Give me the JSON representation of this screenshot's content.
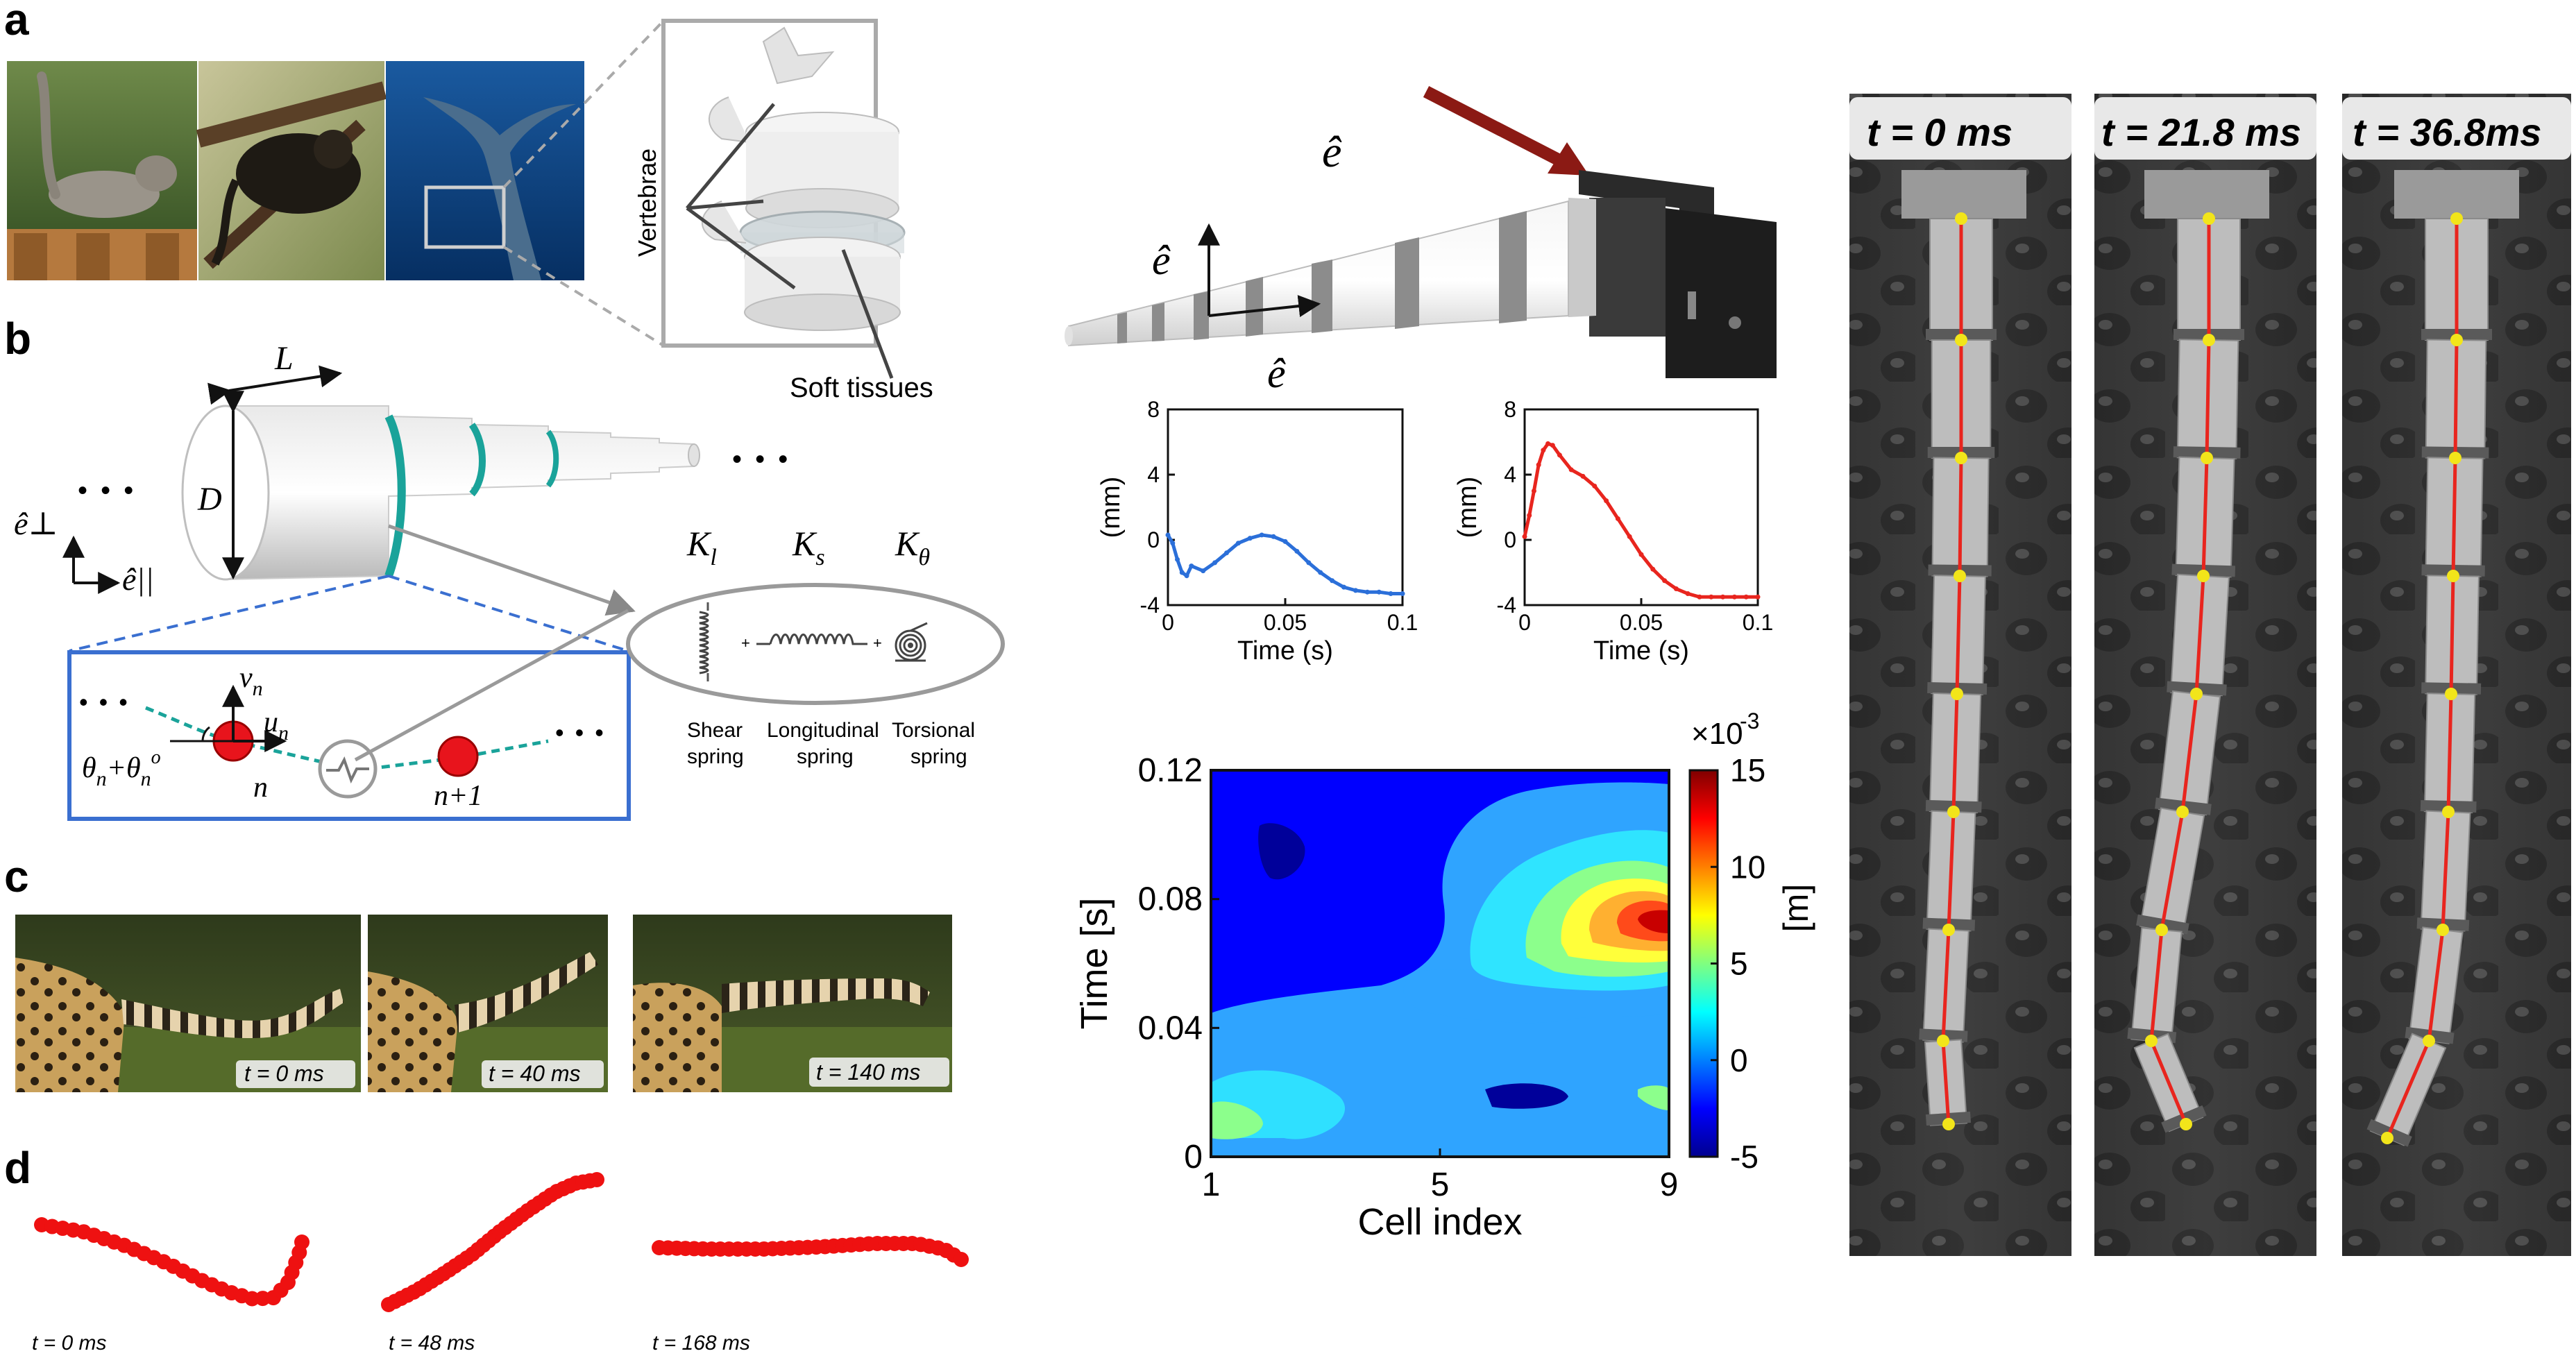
{
  "panels": {
    "a": {
      "letter": "a",
      "vertebrae_label": "Vertebrae",
      "soft_tissue_label": "Soft tissues",
      "photo_icons": [
        "cat-photo",
        "monkey-photo",
        "whale-tail-photo",
        "spine-model"
      ]
    },
    "b": {
      "letter": "b",
      "length_label": "L",
      "diameter_label": "D",
      "e_perp": "ê⊥",
      "e_par": "ê||",
      "k_l": "K",
      "k_l_sub": "l",
      "k_s": "K",
      "k_s_sub": "s",
      "k_theta": "K",
      "k_theta_sub": "θ",
      "v_label": "v",
      "v_sub": "n",
      "u_label": "u",
      "u_sub": "n",
      "theta_label": "θ",
      "theta_sub": "n",
      "theta_plus": "+θ",
      "theta_sub2": "n",
      "theta_sup2": "o",
      "n_label": "n",
      "n1_label": "n+1",
      "shear_line1": "Shear",
      "shear_line2": "spring",
      "long_line1": "Longitudinal",
      "long_line2": "spring",
      "tors_line1": "Torsional",
      "tors_line2": "spring",
      "dots": "• • •"
    },
    "c": {
      "letter": "c",
      "t0": "t = 0 ms",
      "t1": "t = 40 ms",
      "t2": "t = 140 ms"
    },
    "d": {
      "letter": "d",
      "t0": "t = 0 ms",
      "t1": "t = 48 ms",
      "t2": "t = 168 ms"
    },
    "middle": {
      "e_hat": "ê",
      "unit_ylabel": "(mm)",
      "time_xlabel": "Time (s)"
    },
    "right": {
      "t0": "t = 0 ms",
      "t1": "t = 21.8 ms",
      "t2": "t = 36.8ms"
    }
  },
  "colors": {
    "teal": "#1aa39a",
    "blue_box": "#3a6fd0",
    "node_red": "#e8141c",
    "curve_blue": "#2b6fd9",
    "curve_red": "#e8251e",
    "arrow_dark_red": "#8b1a14",
    "dot_red": "#ee1111",
    "yellow_dot": "#f2e51a"
  },
  "chart_data": [
    {
      "type": "line",
      "xlabel": "Time (s)",
      "ylabel": "(mm)",
      "xlim": [
        0,
        0.1
      ],
      "ylim": [
        -4,
        8
      ],
      "xticks": [
        "0",
        "0.05",
        "0.1"
      ],
      "yticks": [
        "-4",
        "0",
        "4",
        "8"
      ],
      "series": [
        {
          "color": "#2b6fd9",
          "x": [
            0,
            0.002,
            0.004,
            0.006,
            0.008,
            0.01,
            0.015,
            0.02,
            0.025,
            0.03,
            0.035,
            0.04,
            0.045,
            0.05,
            0.055,
            0.06,
            0.065,
            0.07,
            0.075,
            0.08,
            0.085,
            0.09,
            0.095,
            0.1
          ],
          "y": [
            0.3,
            -0.2,
            -1.2,
            -2.0,
            -2.2,
            -1.6,
            -1.9,
            -1.4,
            -0.8,
            -0.2,
            0.1,
            0.3,
            0.2,
            -0.1,
            -0.7,
            -1.4,
            -2.0,
            -2.5,
            -2.9,
            -3.1,
            -3.2,
            -3.2,
            -3.3,
            -3.3
          ]
        }
      ]
    },
    {
      "type": "line",
      "xlabel": "Time (s)",
      "ylabel": "(mm)",
      "xlim": [
        0,
        0.1
      ],
      "ylim": [
        -4,
        8
      ],
      "xticks": [
        "0",
        "0.05",
        "0.1"
      ],
      "yticks": [
        "-4",
        "0",
        "4",
        "8"
      ],
      "series": [
        {
          "color": "#e8251e",
          "x": [
            0,
            0.002,
            0.004,
            0.006,
            0.008,
            0.01,
            0.012,
            0.015,
            0.02,
            0.025,
            0.03,
            0.035,
            0.04,
            0.045,
            0.05,
            0.055,
            0.06,
            0.065,
            0.07,
            0.075,
            0.08,
            0.085,
            0.09,
            0.095,
            0.1
          ],
          "y": [
            0.2,
            1.5,
            3.0,
            4.6,
            5.5,
            5.9,
            5.8,
            5.2,
            4.3,
            3.9,
            3.3,
            2.4,
            1.3,
            0.2,
            -0.9,
            -1.8,
            -2.5,
            -3.0,
            -3.3,
            -3.5,
            -3.5,
            -3.5,
            -3.5,
            -3.5,
            -3.5
          ]
        }
      ]
    },
    {
      "type": "heatmap",
      "xlabel": "Cell index",
      "ylabel": "Time [s]",
      "colorbar_label": "[m]",
      "colorbar_multiplier": "×10",
      "colorbar_exponent": "-3",
      "xlim": [
        1,
        9
      ],
      "ylim": [
        0,
        0.12
      ],
      "xticks": [
        "1",
        "5",
        "9"
      ],
      "yticks": [
        "0",
        "0.04",
        "0.08",
        "0.12"
      ],
      "colorbar_ticks": [
        "-5",
        "0",
        "5",
        "10",
        "15"
      ],
      "clim": [
        -5,
        15
      ]
    }
  ]
}
